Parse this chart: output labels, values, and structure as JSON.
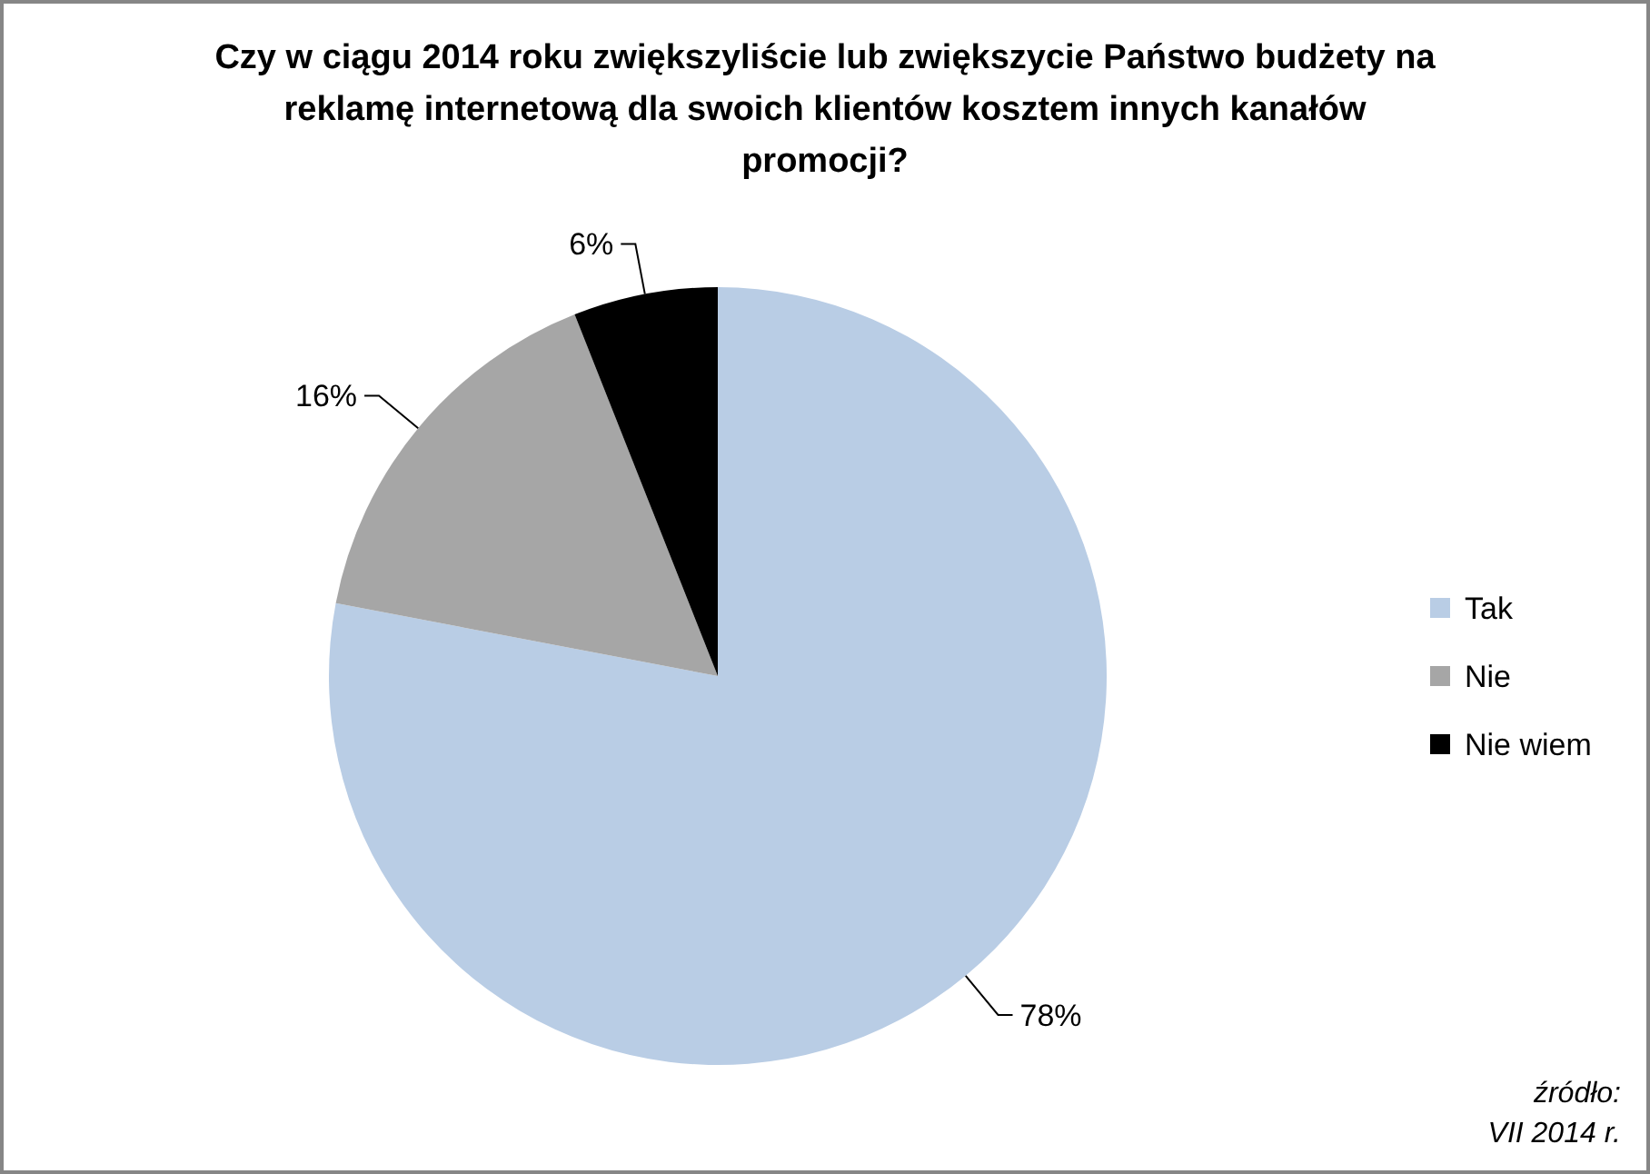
{
  "chart_data": {
    "type": "pie",
    "title": "Czy w ciągu 2014 roku zwiększyliście lub zwiększycie Państwo budżety na reklamę internetową dla swoich klientów kosztem innych kanałów promocji?",
    "categories": [
      "Tak",
      "Nie",
      "Nie wiem"
    ],
    "values": [
      78,
      16,
      6
    ],
    "colors": [
      "#b9cde5",
      "#a6a6a6",
      "#000000"
    ],
    "value_labels": [
      "78%",
      "16%",
      "6%"
    ],
    "legend": "right",
    "annotations": [
      "źródło:",
      "VII 2014 r."
    ]
  }
}
